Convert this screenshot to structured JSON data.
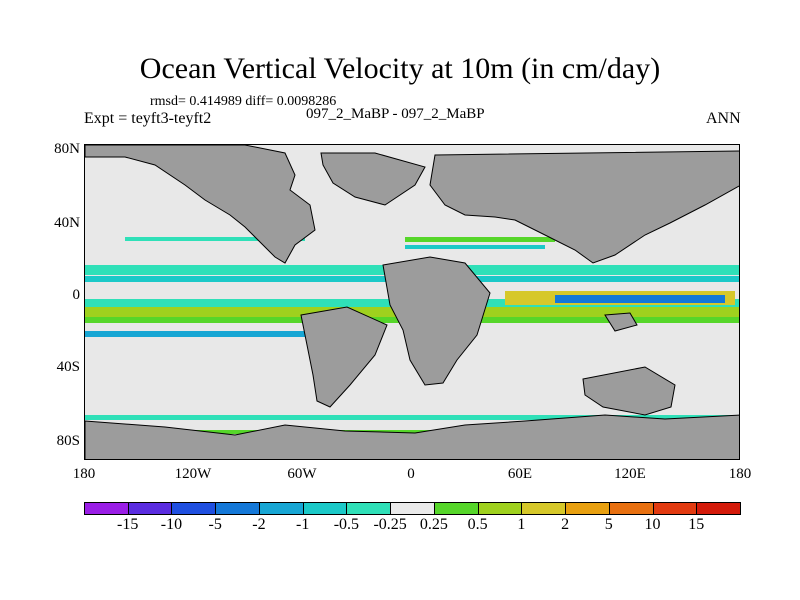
{
  "plot": {
    "title": "Ocean Vertical Velocity at 10m (in cm/day)",
    "stats": "rmsd= 0.414989 diff= 0.0098286",
    "expt": "Expt = teyft3-teyft2",
    "cases": "097_2_MaBP - 097_2_MaBP",
    "season": "ANN"
  },
  "axes": {
    "lat_labels": [
      "80N",
      "40N",
      "0",
      "40S",
      "80S"
    ],
    "lon_labels": [
      "180",
      "120W",
      "60W",
      "0",
      "60E",
      "120E",
      "180"
    ]
  },
  "colorbar": {
    "labels": [
      "-15",
      "-10",
      "-5",
      "-2",
      "-1",
      "-0.5",
      "-0.25",
      "0.25",
      "0.5",
      "1",
      "2",
      "5",
      "10",
      "15"
    ],
    "colors": [
      "#9a1ee6",
      "#5a2ce0",
      "#1f4fe0",
      "#1478d8",
      "#17a6d4",
      "#1bc9c8",
      "#2fe0b8",
      "#eaeaea",
      "#56d62a",
      "#9fd11e",
      "#d6c82a",
      "#e8a010",
      "#e87010",
      "#e23a10",
      "#d41a0a"
    ]
  },
  "colors": {
    "land": "#9c9c9c",
    "ocean": "#e8e8e8"
  }
}
